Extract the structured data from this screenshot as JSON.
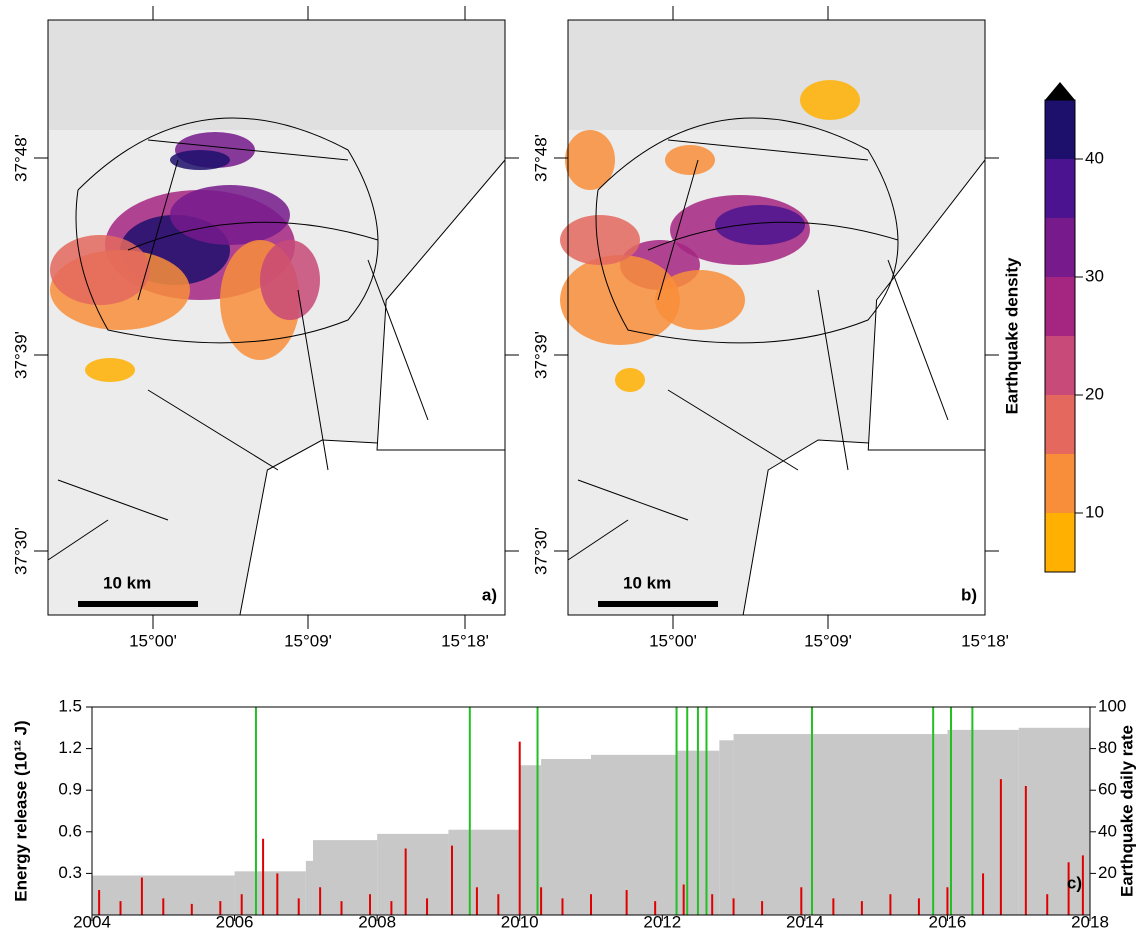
{
  "maps": {
    "lat_labels": [
      "37°48'",
      "37°39'",
      "37°30'"
    ],
    "lon_labels": [
      "15°00'",
      "15°09'",
      "15°18'"
    ],
    "panels": [
      {
        "label": "a)",
        "scale": "10 km"
      },
      {
        "label": "b)",
        "scale": "10 km"
      }
    ]
  },
  "colorbar": {
    "title": "Earthquake density",
    "lim": [
      5,
      45
    ],
    "ticks": [
      10,
      20,
      30,
      40
    ],
    "colors": [
      "#ffb000",
      "#f98e3a",
      "#e4685e",
      "#c84a78",
      "#a52681",
      "#761a8c",
      "#4b138f",
      "#1d0f6c"
    ]
  },
  "chart_data": {
    "type": "bar",
    "xlim": [
      2004,
      2018
    ],
    "xticks": [
      2004,
      2006,
      2008,
      2010,
      2012,
      2014,
      2016,
      2018
    ],
    "ylim": [
      0,
      1.5
    ],
    "yticks": [
      0.3,
      0.6,
      0.9,
      1.2,
      1.5
    ],
    "y2lim": [
      0,
      100
    ],
    "y2ticks": [
      20,
      40,
      60,
      80,
      100
    ],
    "ylabel": "Energy release (10¹² J)",
    "y2label": "Earthquake daily rate",
    "label": "c)",
    "events_x": [
      2006.3,
      2009.3,
      2010.25,
      2012.2,
      2012.35,
      2012.5,
      2012.62,
      2014.1,
      2015.8,
      2016.05,
      2016.35
    ],
    "events_color": "#22c022",
    "series": [
      {
        "color": "#c8c8c8",
        "axis": "y2",
        "x": [
          2004,
          2006,
          2007,
          2007.1,
          2008,
          2009,
          2010,
          2010.3,
          2011,
          2012.2,
          2012.8,
          2013,
          2016,
          2017
        ],
        "values": [
          19,
          21,
          26,
          36,
          39,
          41,
          72,
          75,
          77,
          79,
          84,
          87,
          89,
          90
        ]
      },
      {
        "color": "#e00000",
        "x": [
          2004.1,
          2004.4,
          2004.7,
          2005.0,
          2005.4,
          2005.8,
          2006.1,
          2006.4,
          2006.6,
          2006.9,
          2007.2,
          2007.5,
          2007.9,
          2008.2,
          2008.4,
          2008.7,
          2009.05,
          2009.4,
          2009.7,
          2010.0,
          2010.3,
          2010.6,
          2011.0,
          2011.5,
          2011.9,
          2012.3,
          2012.7,
          2013.0,
          2013.4,
          2013.95,
          2014.4,
          2014.8,
          2015.2,
          2015.6,
          2016.0,
          2016.5,
          2016.75,
          2017.1,
          2017.4,
          2017.7,
          2017.9
        ],
        "values": [
          0.18,
          0.1,
          0.27,
          0.12,
          0.08,
          0.1,
          0.15,
          0.55,
          0.3,
          0.12,
          0.2,
          0.1,
          0.15,
          0.1,
          0.48,
          0.12,
          0.5,
          0.2,
          0.15,
          1.25,
          0.2,
          0.12,
          0.15,
          0.18,
          0.1,
          0.22,
          0.15,
          0.12,
          0.1,
          0.2,
          0.12,
          0.1,
          0.15,
          0.12,
          0.2,
          0.3,
          0.98,
          0.93,
          0.15,
          0.38,
          0.43
        ]
      }
    ]
  }
}
